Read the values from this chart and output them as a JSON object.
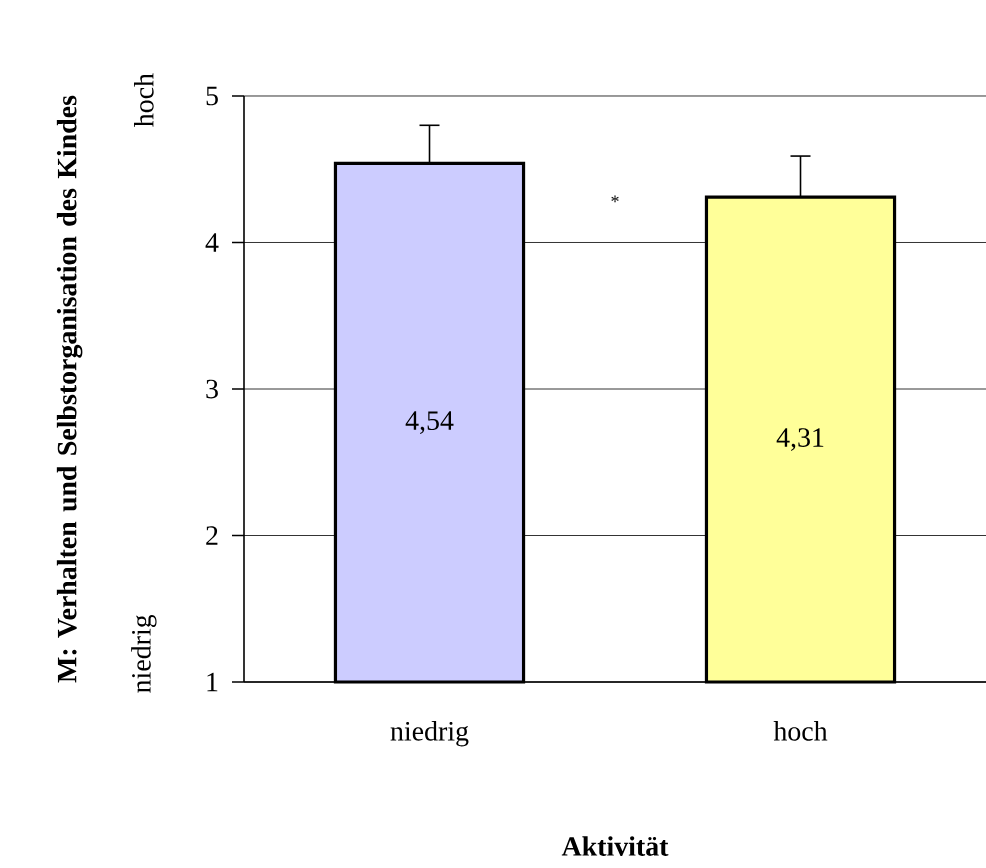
{
  "chart_data": {
    "type": "bar",
    "xlabel": "Aktivität",
    "ylabel": "M: Verhalten und Selbstorganisation des Kindes",
    "categories": [
      "niedrig",
      "hoch"
    ],
    "values": [
      4.54,
      4.31
    ],
    "colors": [
      "#ccccff",
      "#ffff99"
    ],
    "errors": [
      0.26,
      0.28
    ],
    "value_labels": [
      "4,54",
      "4,31"
    ],
    "ylim": [
      1,
      5
    ],
    "yticks": [
      1,
      2,
      3,
      4,
      5
    ],
    "grid": "y",
    "annotations": [
      "hoch",
      "niedrig",
      "*"
    ]
  }
}
